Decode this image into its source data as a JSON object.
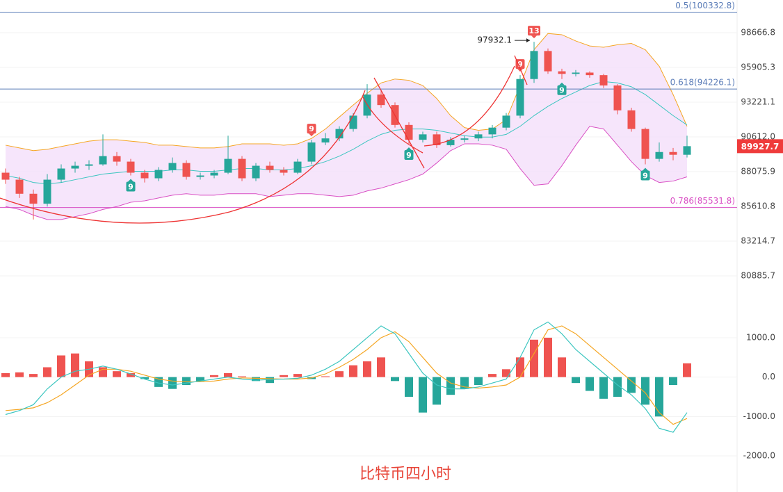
{
  "caption": "比特币四小时",
  "chart_data": [
    {
      "type": "candlestick",
      "log_scale": true,
      "grid": true,
      "ylim": [
        78935,
        101335
      ],
      "yticks": [
        98666.8,
        95905.3,
        93221.1,
        {
          "value": 90612,
          "label": "90612.0"
        },
        88075.9,
        85610.8,
        83214.7,
        80885.7
      ],
      "up_color": "#26a69a",
      "down_color": "#ef5350",
      "open": [
        88000,
        87500,
        86500,
        85800,
        87500,
        88300,
        88500,
        88600,
        89200,
        88800,
        88000,
        87600,
        88200,
        88700,
        87700,
        87800,
        88000,
        89000,
        87600,
        88500,
        88200,
        88000,
        88800,
        90200,
        90500,
        91200,
        92200,
        93800,
        93000,
        91500,
        90400,
        90800,
        90000,
        90400,
        90500,
        90800,
        91300,
        92200,
        95000,
        97200,
        95600,
        95400,
        95500,
        95300,
        94500,
        92600,
        91200,
        89000,
        89500,
        89300
      ],
      "high": [
        88300,
        87700,
        86800,
        87900,
        88600,
        88800,
        88900,
        90800,
        89500,
        89000,
        88200,
        88400,
        89100,
        88900,
        88000,
        88200,
        90700,
        89200,
        88700,
        88800,
        88400,
        89000,
        90400,
        90900,
        91400,
        92400,
        94600,
        94100,
        93200,
        91700,
        91000,
        91000,
        90600,
        90700,
        91000,
        91500,
        92400,
        95300,
        97932.1,
        97400,
        95800,
        95700,
        95600,
        95400,
        94600,
        92800,
        91300,
        90200,
        89800,
        90700
      ],
      "low": [
        87200,
        86200,
        84700,
        85600,
        87300,
        88000,
        88200,
        88500,
        88500,
        87800,
        87300,
        87400,
        88000,
        87500,
        87500,
        87600,
        87900,
        87400,
        87400,
        88000,
        87800,
        87900,
        88600,
        90000,
        90300,
        91000,
        92000,
        92800,
        91300,
        90100,
        90200,
        89800,
        89900,
        90200,
        90300,
        90500,
        91100,
        92000,
        94700,
        95400,
        95000,
        95200,
        95100,
        94300,
        92300,
        91000,
        88600,
        88800,
        88900,
        89100
      ],
      "close": [
        87500,
        86500,
        85800,
        87500,
        88300,
        88500,
        88600,
        89200,
        88800,
        88000,
        87600,
        88200,
        88700,
        87700,
        87800,
        88000,
        89000,
        87600,
        88500,
        88200,
        88000,
        88800,
        90200,
        90500,
        91200,
        92200,
        93800,
        93000,
        91500,
        90400,
        90800,
        90000,
        90400,
        90500,
        90800,
        91300,
        92200,
        95000,
        97200,
        95600,
        95400,
        95500,
        95300,
        94500,
        92600,
        91200,
        89000,
        89500,
        89300,
        89927.7
      ],
      "mid": [
        87800,
        87600,
        87300,
        87200,
        87300,
        87500,
        87700,
        87900,
        88000,
        88100,
        88100,
        88100,
        88200,
        88200,
        88100,
        88100,
        88200,
        88300,
        88300,
        88200,
        88200,
        88300,
        88500,
        88800,
        89200,
        89700,
        90300,
        90800,
        91100,
        91200,
        91200,
        91100,
        90900,
        90700,
        90600,
        90600,
        90800,
        91400,
        92200,
        92900,
        93500,
        94000,
        94500,
        94800,
        94700,
        94400,
        93800,
        93000,
        92200,
        91500
      ],
      "upper": [
        90000,
        89800,
        89600,
        89700,
        89900,
        90100,
        90300,
        90400,
        90400,
        90300,
        90200,
        90000,
        90000,
        89900,
        89800,
        89800,
        89900,
        90100,
        90100,
        90100,
        90000,
        90100,
        90500,
        91200,
        92100,
        93000,
        93900,
        94700,
        95000,
        94900,
        94500,
        93500,
        92200,
        91300,
        91100,
        91200,
        91900,
        94500,
        97300,
        98600,
        98500,
        98000,
        97600,
        97500,
        97700,
        97800,
        97300,
        96000,
        93800,
        91400
      ],
      "lower": [
        85600,
        85400,
        85000,
        84700,
        84700,
        84900,
        85100,
        85400,
        85600,
        85900,
        86000,
        86200,
        86400,
        86500,
        86400,
        86400,
        86500,
        86500,
        86500,
        86300,
        86400,
        86500,
        86500,
        86400,
        86300,
        86400,
        86700,
        86900,
        87200,
        87500,
        87900,
        88700,
        89600,
        90100,
        90100,
        90000,
        89700,
        88300,
        87100,
        87200,
        88500,
        90000,
        91400,
        91200,
        90000,
        88800,
        87800,
        87300,
        87400,
        87700
      ],
      "upper_color": "#f5a623",
      "mid_color": "#3cc6c0",
      "lower_color": "#d94fc4",
      "band_fill": "#f3dcfa",
      "levels": [
        {
          "label": "0.5(100332.8)",
          "value": 100332.8,
          "color": "#5b7db8"
        },
        {
          "label": "0.618(94226.1)",
          "value": 94226.1,
          "color": "#5b7db8"
        },
        {
          "label": "0.786(85531.8)",
          "value": 85531.8,
          "color": "#d94fc4"
        }
      ],
      "markers": [
        {
          "label": "9",
          "index": 9,
          "side": "below"
        },
        {
          "label": "9",
          "index": 22,
          "side": "above"
        },
        {
          "label": "9",
          "index": 29,
          "side": "below"
        },
        {
          "label": "9",
          "index": 37,
          "side": "above"
        },
        {
          "label": "13",
          "index": 38,
          "side": "above"
        },
        {
          "label": "9",
          "index": 40,
          "side": "below"
        },
        {
          "label": "9",
          "index": 46,
          "side": "below"
        }
      ]
    },
    {
      "type": "macd",
      "ylim": [
        -2776,
        1723
      ],
      "yticks": [
        {
          "value": 1000,
          "label": "1000.0"
        },
        {
          "value": 0,
          "label": "0.0"
        },
        {
          "value": -1000,
          "label": "-1000.0"
        },
        {
          "value": -2000,
          "label": "-2000.0"
        }
      ],
      "pos_color": "#ef5350",
      "neg_color": "#26a69a",
      "dif_color": "#3cc6c0",
      "dea_color": "#f5a623",
      "hist": [
        100,
        120,
        80,
        250,
        550,
        600,
        400,
        250,
        150,
        100,
        -50,
        -250,
        -300,
        -200,
        -100,
        50,
        100,
        20,
        -100,
        -150,
        50,
        80,
        -50,
        20,
        150,
        300,
        400,
        500,
        -100,
        -500,
        -900,
        -700,
        -450,
        -300,
        -200,
        80,
        200,
        500,
        950,
        1000,
        500,
        -150,
        -350,
        -550,
        -500,
        -400,
        -700,
        -1000,
        -200,
        350
      ],
      "dif": [
        -950,
        -850,
        -700,
        -300,
        0,
        150,
        200,
        280,
        200,
        80,
        -50,
        -150,
        -200,
        -150,
        -100,
        -50,
        0,
        -50,
        -80,
        -60,
        -50,
        -30,
        50,
        200,
        400,
        700,
        1000,
        1300,
        1100,
        600,
        100,
        -200,
        -300,
        -300,
        -250,
        -150,
        -50,
        500,
        1200,
        1400,
        1100,
        700,
        400,
        100,
        -200,
        -450,
        -800,
        -1300,
        -1400,
        -900
      ],
      "dea": [
        -850,
        -820,
        -780,
        -650,
        -450,
        -200,
        50,
        200,
        200,
        150,
        50,
        -50,
        -100,
        -120,
        -120,
        -100,
        -50,
        -20,
        -30,
        -40,
        -50,
        -50,
        -20,
        80,
        250,
        450,
        700,
        1000,
        1150,
        900,
        500,
        100,
        -150,
        -250,
        -280,
        -250,
        -200,
        0,
        600,
        1200,
        1300,
        1100,
        800,
        500,
        200,
        -100,
        -400,
        -900,
        -1200,
        -1050
      ]
    }
  ]
}
